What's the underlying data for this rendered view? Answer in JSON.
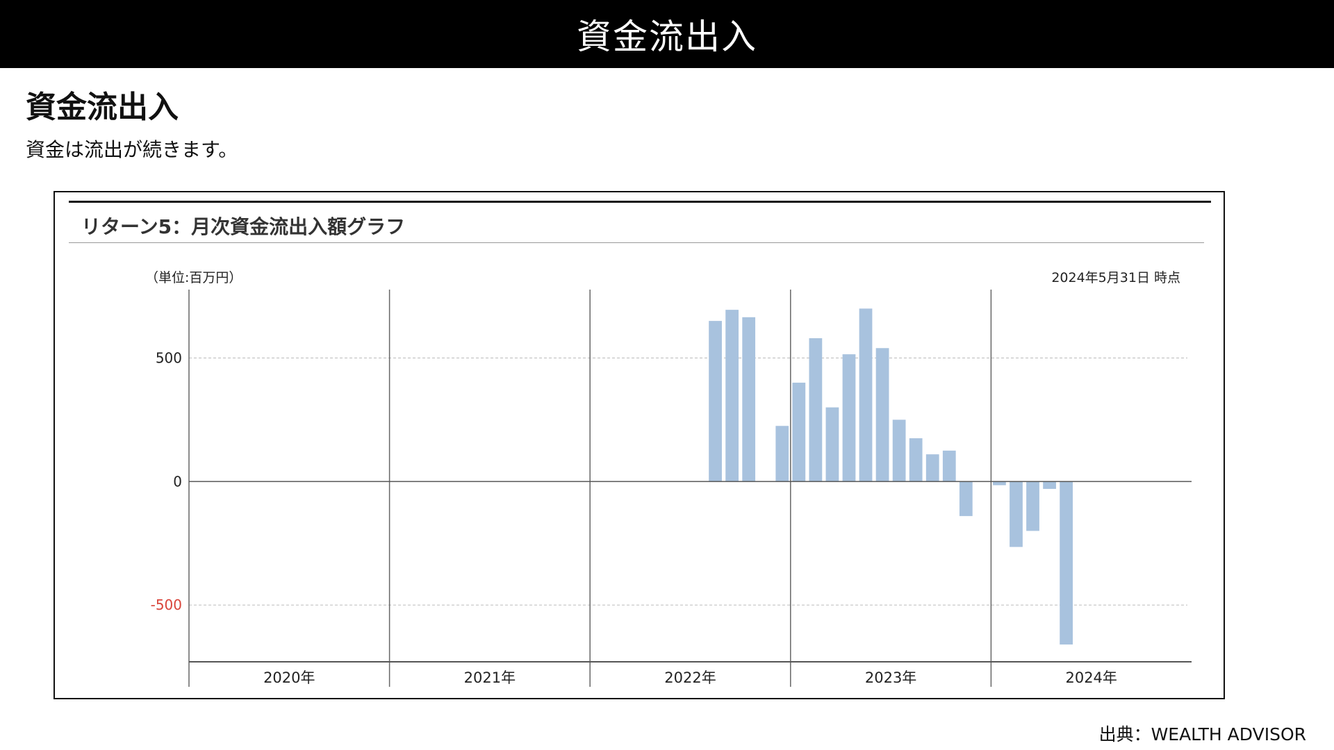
{
  "header": {
    "banner_title": "資金流出入"
  },
  "page": {
    "heading": "資金流出入",
    "description": "資金は流出が続きます。",
    "source": "出典：WEALTH ADVISOR"
  },
  "chart_data": {
    "type": "bar",
    "title": "リターン5：月次資金流出入額グラフ",
    "unit_label": "（単位:百万円）",
    "as_of": "2024年5月31日 時点",
    "x_range": [
      "2020-01",
      "2024-12"
    ],
    "x_ticks": [
      "2020年",
      "2021年",
      "2022年",
      "2023年",
      "2024年"
    ],
    "y_ticks": [
      500,
      0,
      -500
    ],
    "ylim": [
      -730,
      760
    ],
    "grid": "dashed horizontal at ±500; vertical year separators",
    "colors": {
      "bar": "#a8c2de",
      "negative_tick": "#d9443a",
      "axis": "#555555"
    },
    "series": [
      {
        "months": [
          "2022-08",
          "2022-09",
          "2022-10",
          "2022-12",
          "2023-01",
          "2023-02",
          "2023-03",
          "2023-04",
          "2023-05",
          "2023-06",
          "2023-07",
          "2023-08",
          "2023-09",
          "2023-10",
          "2023-11",
          "2024-01",
          "2024-02",
          "2024-03",
          "2024-04",
          "2024-05"
        ],
        "values": [
          650,
          695,
          665,
          225,
          400,
          580,
          300,
          515,
          700,
          540,
          250,
          175,
          110,
          125,
          -140,
          -15,
          -265,
          -200,
          -30,
          -660
        ]
      }
    ]
  }
}
